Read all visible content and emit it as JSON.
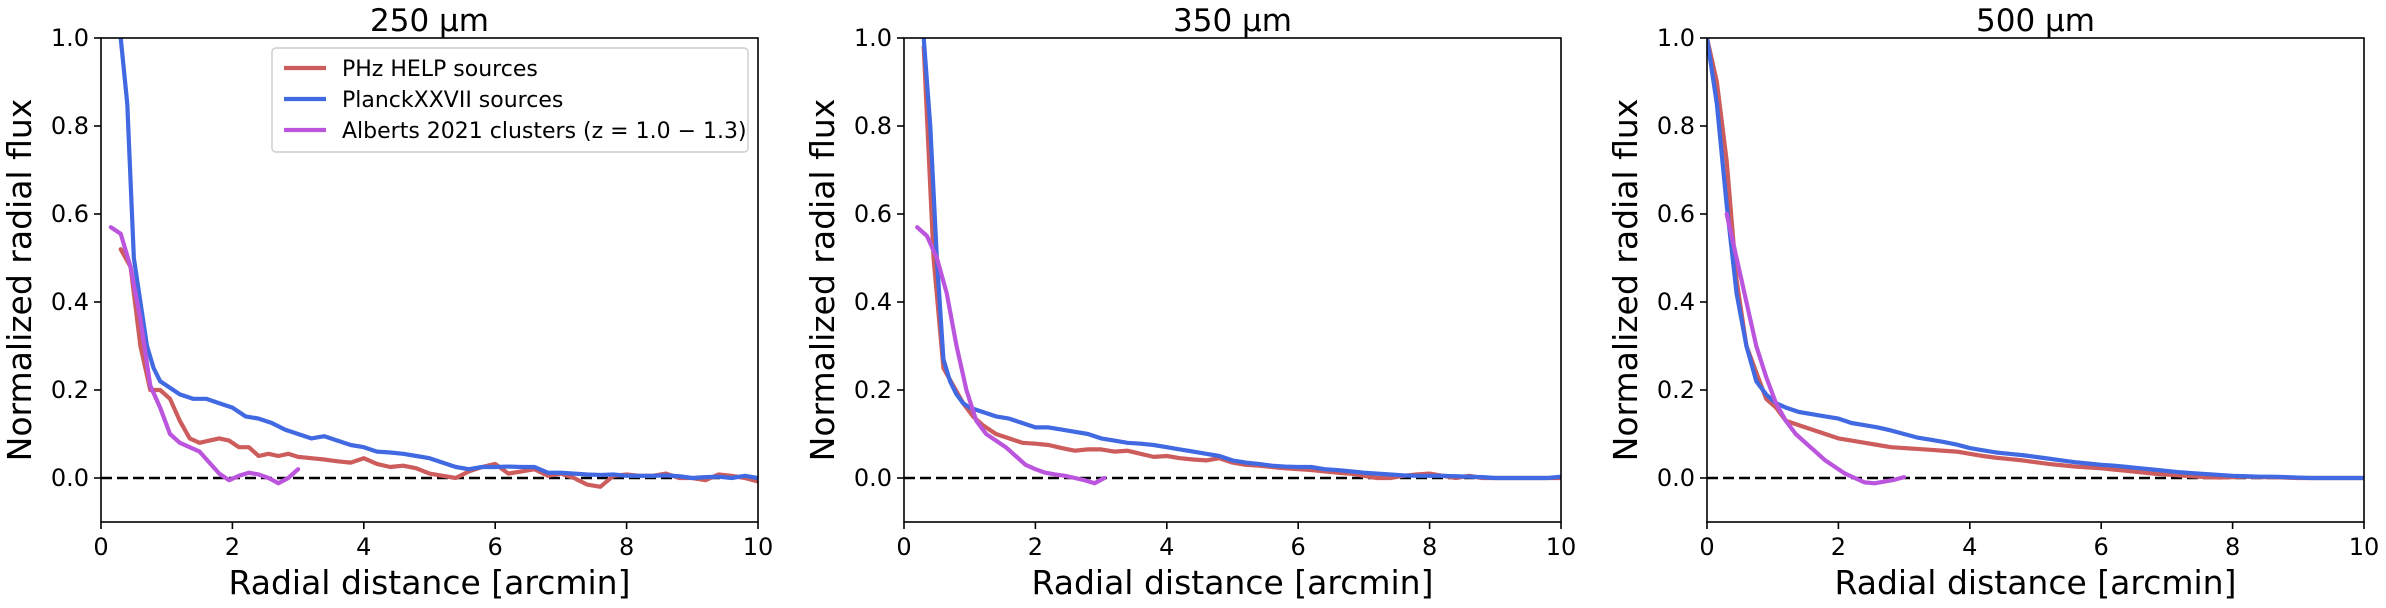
{
  "chart_data": [
    {
      "type": "line",
      "title": "250 μm",
      "xlabel": "Radial distance [arcmin]",
      "ylabel": "Normalized radial flux",
      "xlim": [
        0,
        10
      ],
      "ylim": [
        -0.1,
        1.0
      ],
      "xticks": [
        0,
        2,
        4,
        6,
        8,
        10
      ],
      "yticks": [
        0.0,
        0.2,
        0.4,
        0.6,
        0.8,
        1.0
      ],
      "xtick_labels": [
        "0",
        "2",
        "4",
        "6",
        "8",
        "10"
      ],
      "ytick_labels": [
        "0.0",
        "0.2",
        "0.4",
        "0.6",
        "0.8",
        "1.0"
      ],
      "reference_line": 0.0,
      "legend": "top-center",
      "series": [
        {
          "name": "PHz HELP sources",
          "color": "#cd5c5c",
          "x": [
            0.3,
            0.45,
            0.6,
            0.75,
            0.9,
            1.05,
            1.2,
            1.35,
            1.5,
            1.65,
            1.8,
            1.95,
            2.1,
            2.25,
            2.4,
            2.55,
            2.7,
            2.85,
            3.0,
            3.2,
            3.4,
            3.6,
            3.8,
            4.0,
            4.2,
            4.4,
            4.6,
            4.8,
            5.0,
            5.2,
            5.4,
            5.6,
            5.8,
            6.0,
            6.2,
            6.4,
            6.6,
            6.8,
            7.0,
            7.2,
            7.4,
            7.6,
            7.8,
            8.0,
            8.2,
            8.4,
            8.6,
            8.8,
            9.0,
            9.2,
            9.4,
            9.6,
            9.8,
            10.0
          ],
          "y": [
            0.52,
            0.48,
            0.3,
            0.2,
            0.2,
            0.18,
            0.13,
            0.09,
            0.08,
            0.085,
            0.09,
            0.085,
            0.07,
            0.07,
            0.05,
            0.055,
            0.05,
            0.055,
            0.048,
            0.045,
            0.042,
            0.038,
            0.035,
            0.045,
            0.032,
            0.025,
            0.028,
            0.022,
            0.01,
            0.005,
            0.0,
            0.015,
            0.025,
            0.032,
            0.01,
            0.015,
            0.02,
            0.005,
            0.01,
            0.0,
            -0.015,
            -0.02,
            0.005,
            0.008,
            0.005,
            0.005,
            0.01,
            0.0,
            0.0,
            -0.005,
            0.008,
            0.005,
            0.0,
            -0.008
          ]
        },
        {
          "name": "PlanckXXVII sources",
          "color": "#4169e1",
          "x": [
            0.3,
            0.4,
            0.5,
            0.6,
            0.7,
            0.8,
            0.9,
            1.0,
            1.2,
            1.4,
            1.6,
            1.8,
            2.0,
            2.2,
            2.4,
            2.6,
            2.8,
            3.0,
            3.2,
            3.4,
            3.6,
            3.8,
            4.0,
            4.2,
            4.4,
            4.6,
            4.8,
            5.0,
            5.2,
            5.4,
            5.6,
            5.8,
            6.0,
            6.2,
            6.4,
            6.6,
            6.8,
            7.0,
            7.2,
            7.4,
            7.6,
            7.8,
            8.0,
            8.2,
            8.4,
            8.6,
            8.8,
            9.0,
            9.2,
            9.4,
            9.6,
            9.8,
            10.0
          ],
          "y": [
            1.0,
            0.85,
            0.5,
            0.4,
            0.3,
            0.25,
            0.22,
            0.21,
            0.19,
            0.18,
            0.18,
            0.17,
            0.16,
            0.14,
            0.135,
            0.125,
            0.11,
            0.1,
            0.09,
            0.095,
            0.085,
            0.075,
            0.07,
            0.06,
            0.058,
            0.055,
            0.05,
            0.045,
            0.035,
            0.025,
            0.02,
            0.025,
            0.025,
            0.026,
            0.025,
            0.025,
            0.012,
            0.012,
            0.01,
            0.008,
            0.007,
            0.008,
            0.005,
            0.005,
            0.005,
            0.006,
            0.004,
            0.0,
            0.002,
            0.003,
            0.0,
            0.005,
            0.0
          ]
        },
        {
          "name": "Alberts 2021 clusters (z = 1.0 − 1.3)",
          "color": "#bb55dd",
          "x": [
            0.15,
            0.3,
            0.45,
            0.6,
            0.75,
            0.9,
            1.05,
            1.2,
            1.35,
            1.5,
            1.65,
            1.8,
            1.95,
            2.1,
            2.25,
            2.4,
            2.55,
            2.7,
            2.85,
            3.0
          ],
          "y": [
            0.57,
            0.555,
            0.48,
            0.36,
            0.21,
            0.16,
            0.1,
            0.08,
            0.07,
            0.06,
            0.035,
            0.01,
            -0.005,
            0.005,
            0.012,
            0.008,
            0.0,
            -0.012,
            0.0,
            0.02
          ]
        }
      ]
    },
    {
      "type": "line",
      "title": "350 μm",
      "xlabel": "Radial distance [arcmin]",
      "ylabel": "Normalized radial flux",
      "xlim": [
        0,
        10
      ],
      "ylim": [
        -0.1,
        1.0
      ],
      "xticks": [
        0,
        2,
        4,
        6,
        8,
        10
      ],
      "yticks": [
        0.0,
        0.2,
        0.4,
        0.6,
        0.8,
        1.0
      ],
      "xtick_labels": [
        "0",
        "2",
        "4",
        "6",
        "8",
        "10"
      ],
      "ytick_labels": [
        "0.0",
        "0.2",
        "0.4",
        "0.6",
        "0.8",
        "1.0"
      ],
      "reference_line": 0.0,
      "series": [
        {
          "name": "PHz HELP sources",
          "color": "#cd5c5c",
          "x": [
            0.3,
            0.45,
            0.6,
            0.75,
            0.9,
            1.05,
            1.2,
            1.4,
            1.6,
            1.8,
            2.0,
            2.2,
            2.4,
            2.6,
            2.8,
            3.0,
            3.2,
            3.4,
            3.6,
            3.8,
            4.0,
            4.2,
            4.4,
            4.6,
            4.8,
            5.0,
            5.2,
            5.4,
            5.6,
            5.8,
            6.0,
            6.2,
            6.4,
            6.6,
            6.8,
            7.0,
            7.2,
            7.4,
            7.6,
            7.8,
            8.0,
            8.2,
            8.4,
            8.6,
            8.8,
            9.0,
            9.2,
            9.4,
            9.6,
            9.8,
            10.0
          ],
          "y": [
            0.98,
            0.5,
            0.25,
            0.21,
            0.17,
            0.14,
            0.12,
            0.1,
            0.09,
            0.08,
            0.078,
            0.075,
            0.068,
            0.062,
            0.065,
            0.065,
            0.06,
            0.062,
            0.055,
            0.048,
            0.05,
            0.045,
            0.042,
            0.04,
            0.045,
            0.035,
            0.03,
            0.028,
            0.025,
            0.022,
            0.02,
            0.018,
            0.015,
            0.012,
            0.01,
            0.005,
            0.0,
            0.0,
            0.005,
            0.008,
            0.01,
            0.005,
            0.0,
            0.005,
            0.0,
            0.0,
            0.0,
            0.0,
            0.0,
            0.0,
            0.0
          ]
        },
        {
          "name": "PlanckXXVII sources",
          "color": "#4169e1",
          "x": [
            0.3,
            0.4,
            0.5,
            0.6,
            0.7,
            0.8,
            0.9,
            1.0,
            1.2,
            1.4,
            1.6,
            1.8,
            2.0,
            2.2,
            2.4,
            2.6,
            2.8,
            3.0,
            3.2,
            3.4,
            3.6,
            3.8,
            4.0,
            4.2,
            4.4,
            4.6,
            4.8,
            5.0,
            5.2,
            5.4,
            5.6,
            5.8,
            6.0,
            6.2,
            6.4,
            6.6,
            6.8,
            7.0,
            7.2,
            7.4,
            7.6,
            7.8,
            8.0,
            8.2,
            8.4,
            8.6,
            8.8,
            9.0,
            9.2,
            9.4,
            9.6,
            9.8,
            10.0
          ],
          "y": [
            1.0,
            0.8,
            0.5,
            0.27,
            0.22,
            0.19,
            0.17,
            0.16,
            0.15,
            0.14,
            0.135,
            0.125,
            0.115,
            0.115,
            0.11,
            0.105,
            0.1,
            0.09,
            0.085,
            0.08,
            0.078,
            0.075,
            0.07,
            0.065,
            0.06,
            0.055,
            0.05,
            0.04,
            0.035,
            0.032,
            0.028,
            0.026,
            0.025,
            0.025,
            0.02,
            0.018,
            0.015,
            0.012,
            0.01,
            0.008,
            0.006,
            0.005,
            0.005,
            0.005,
            0.004,
            0.003,
            0.002,
            0.0,
            0.0,
            0.0,
            0.0,
            0.0,
            0.003
          ]
        },
        {
          "name": "Alberts 2021 clusters (z = 1.0 − 1.3)",
          "color": "#bb55dd",
          "x": [
            0.2,
            0.35,
            0.5,
            0.65,
            0.8,
            0.95,
            1.1,
            1.25,
            1.4,
            1.55,
            1.7,
            1.85,
            2.0,
            2.15,
            2.3,
            2.45,
            2.6,
            2.75,
            2.9,
            3.05
          ],
          "y": [
            0.57,
            0.55,
            0.5,
            0.42,
            0.3,
            0.2,
            0.13,
            0.1,
            0.085,
            0.07,
            0.05,
            0.03,
            0.02,
            0.012,
            0.008,
            0.005,
            0.0,
            -0.005,
            -0.012,
            0.0
          ]
        }
      ]
    },
    {
      "type": "line",
      "title": "500 μm",
      "xlabel": "Radial distance [arcmin]",
      "ylabel": "Normalized radial flux",
      "xlim": [
        0,
        10
      ],
      "ylim": [
        -0.1,
        1.0
      ],
      "xticks": [
        0,
        2,
        4,
        6,
        8,
        10
      ],
      "yticks": [
        0.0,
        0.2,
        0.4,
        0.6,
        0.8,
        1.0
      ],
      "xtick_labels": [
        "0",
        "2",
        "4",
        "6",
        "8",
        "10"
      ],
      "ytick_labels": [
        "0.0",
        "0.2",
        "0.4",
        "0.6",
        "0.8",
        "1.0"
      ],
      "reference_line": 0.0,
      "series": [
        {
          "name": "PHz HELP sources",
          "color": "#cd5c5c",
          "x": [
            0.0,
            0.15,
            0.3,
            0.45,
            0.6,
            0.75,
            0.9,
            1.05,
            1.2,
            1.4,
            1.6,
            1.8,
            2.0,
            2.2,
            2.4,
            2.6,
            2.8,
            3.0,
            3.2,
            3.4,
            3.6,
            3.8,
            4.0,
            4.2,
            4.4,
            4.6,
            4.8,
            5.0,
            5.2,
            5.4,
            5.6,
            5.8,
            6.0,
            6.2,
            6.4,
            6.6,
            6.8,
            7.0,
            7.2,
            7.4,
            7.6,
            7.8,
            8.0,
            8.2,
            8.4,
            8.6,
            8.8,
            9.0,
            9.2,
            9.4,
            9.6,
            9.8,
            10.0
          ],
          "y": [
            1.0,
            0.9,
            0.72,
            0.45,
            0.3,
            0.24,
            0.18,
            0.16,
            0.13,
            0.12,
            0.11,
            0.1,
            0.09,
            0.085,
            0.08,
            0.075,
            0.07,
            0.068,
            0.066,
            0.064,
            0.062,
            0.06,
            0.055,
            0.05,
            0.046,
            0.043,
            0.04,
            0.036,
            0.032,
            0.029,
            0.026,
            0.024,
            0.022,
            0.019,
            0.016,
            0.013,
            0.01,
            0.008,
            0.006,
            0.004,
            0.002,
            0.001,
            0.002,
            0.003,
            0.002,
            0.002,
            0.001,
            0.0,
            0.0,
            0.0,
            0.0,
            0.0,
            0.0
          ]
        },
        {
          "name": "PlanckXXVII sources",
          "color": "#4169e1",
          "x": [
            0.0,
            0.15,
            0.3,
            0.45,
            0.6,
            0.75,
            0.9,
            1.05,
            1.2,
            1.4,
            1.6,
            1.8,
            2.0,
            2.2,
            2.4,
            2.6,
            2.8,
            3.0,
            3.2,
            3.4,
            3.6,
            3.8,
            4.0,
            4.2,
            4.4,
            4.6,
            4.8,
            5.0,
            5.2,
            5.4,
            5.6,
            5.8,
            6.0,
            6.2,
            6.4,
            6.6,
            6.8,
            7.0,
            7.2,
            7.4,
            7.6,
            7.8,
            8.0,
            8.2,
            8.4,
            8.6,
            8.8,
            9.0,
            9.2,
            9.4,
            9.6,
            9.8,
            10.0
          ],
          "y": [
            1.0,
            0.85,
            0.62,
            0.42,
            0.3,
            0.22,
            0.19,
            0.17,
            0.16,
            0.15,
            0.145,
            0.14,
            0.135,
            0.125,
            0.12,
            0.115,
            0.108,
            0.1,
            0.092,
            0.087,
            0.082,
            0.076,
            0.068,
            0.063,
            0.058,
            0.055,
            0.052,
            0.048,
            0.044,
            0.04,
            0.036,
            0.033,
            0.03,
            0.028,
            0.025,
            0.022,
            0.019,
            0.016,
            0.013,
            0.011,
            0.009,
            0.007,
            0.005,
            0.004,
            0.003,
            0.003,
            0.002,
            0.001,
            0.0,
            0.0,
            0.0,
            0.0,
            0.0
          ]
        },
        {
          "name": "Alberts 2021 clusters (z = 1.0 − 1.3)",
          "color": "#bb55dd",
          "x": [
            0.3,
            0.45,
            0.6,
            0.75,
            0.9,
            1.05,
            1.2,
            1.35,
            1.5,
            1.65,
            1.8,
            1.95,
            2.1,
            2.25,
            2.4,
            2.55,
            2.7,
            2.85,
            3.0
          ],
          "y": [
            0.6,
            0.5,
            0.4,
            0.3,
            0.23,
            0.17,
            0.13,
            0.1,
            0.08,
            0.06,
            0.04,
            0.025,
            0.01,
            0.0,
            -0.01,
            -0.012,
            -0.008,
            -0.004,
            0.002
          ]
        }
      ]
    }
  ]
}
